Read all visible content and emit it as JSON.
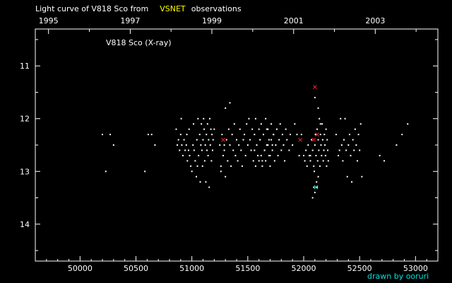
{
  "title": {
    "prefix": "Light curve of V818 Sco from",
    "source": "VSNET",
    "suffix": "observations"
  },
  "credit": "drawn by ooruri",
  "colors": {
    "background": "#000000",
    "foreground": "#ffffff",
    "accent": "#ffff00",
    "credit": "#00e0e0",
    "marker_red": "#ff2020",
    "marker_cyan": "#40e0e0"
  },
  "chart_data": {
    "type": "scatter",
    "annotation": "V818 Sco (X-ray)",
    "xlim": [
      49600,
      53200
    ],
    "ylim": [
      14.7,
      10.3
    ],
    "y_inverted": true,
    "grid": false,
    "x_ticks": [
      50000,
      50500,
      51000,
      51500,
      52000,
      52500,
      53000
    ],
    "x_tick_labels": [
      "50000",
      "50500",
      "51000",
      "51500",
      "52000",
      "52500",
      "53000"
    ],
    "y_ticks": [
      11,
      12,
      13,
      14
    ],
    "y_tick_labels": [
      "11",
      "12",
      "13",
      "14"
    ],
    "top_axis": {
      "ticks": [
        49718,
        50449,
        51179,
        51910,
        52640
      ],
      "labels": [
        "1995",
        "1997",
        "1999",
        "2001",
        "2003"
      ]
    },
    "series": [
      {
        "color": "#ffffff",
        "points": [
          [
            50200,
            12.3
          ],
          [
            50230,
            13.0
          ],
          [
            50270,
            12.3
          ],
          [
            50300,
            12.5
          ],
          [
            50580,
            13.0
          ],
          [
            50610,
            12.3
          ],
          [
            50640,
            12.3
          ],
          [
            50670,
            12.5
          ],
          [
            50860,
            12.2
          ],
          [
            50870,
            12.5
          ],
          [
            50880,
            12.4
          ],
          [
            50890,
            12.6
          ],
          [
            50900,
            12.3
          ],
          [
            50905,
            12.0
          ],
          [
            50910,
            12.5
          ],
          [
            50920,
            12.7
          ],
          [
            50930,
            12.4
          ],
          [
            50940,
            12.6
          ],
          [
            50950,
            12.5
          ],
          [
            50955,
            12.3
          ],
          [
            50960,
            12.8
          ],
          [
            50970,
            12.6
          ],
          [
            50975,
            12.2
          ],
          [
            50980,
            12.7
          ],
          [
            50990,
            12.9
          ],
          [
            51000,
            13.0
          ],
          [
            51010,
            12.5
          ],
          [
            51015,
            12.1
          ],
          [
            51020,
            12.6
          ],
          [
            51030,
            12.8
          ],
          [
            51040,
            13.1
          ],
          [
            51045,
            12.4
          ],
          [
            51050,
            12.9
          ],
          [
            51055,
            12.0
          ],
          [
            51060,
            12.7
          ],
          [
            51070,
            12.3
          ],
          [
            51075,
            13.2
          ],
          [
            51080,
            12.5
          ],
          [
            51085,
            12.1
          ],
          [
            51090,
            12.6
          ],
          [
            51095,
            12.9
          ],
          [
            51100,
            12.4
          ],
          [
            51105,
            12.0
          ],
          [
            51110,
            12.2
          ],
          [
            51115,
            12.8
          ],
          [
            51120,
            12.5
          ],
          [
            51125,
            13.2
          ],
          [
            51130,
            12.3
          ],
          [
            51135,
            12.6
          ],
          [
            51140,
            12.1
          ],
          [
            51145,
            12.7
          ],
          [
            51150,
            12.4
          ],
          [
            51155,
            13.3
          ],
          [
            51160,
            12.0
          ],
          [
            51165,
            12.5
          ],
          [
            51170,
            12.2
          ],
          [
            51175,
            12.8
          ],
          [
            51180,
            12.3
          ],
          [
            51185,
            12.6
          ],
          [
            51190,
            12.4
          ],
          [
            51200,
            12.2
          ],
          [
            51250,
            12.5
          ],
          [
            51260,
            12.9
          ],
          [
            51270,
            12.3
          ],
          [
            51280,
            12.7
          ],
          [
            51290,
            12.6
          ],
          [
            51300,
            13.1
          ],
          [
            51310,
            12.4
          ],
          [
            51320,
            12.8
          ],
          [
            51330,
            12.2
          ],
          [
            51340,
            12.5
          ],
          [
            51350,
            12.9
          ],
          [
            51360,
            12.3
          ],
          [
            51370,
            12.6
          ],
          [
            51380,
            12.1
          ],
          [
            51390,
            12.7
          ],
          [
            51400,
            12.4
          ],
          [
            51410,
            12.8
          ],
          [
            51420,
            12.5
          ],
          [
            51430,
            12.2
          ],
          [
            51440,
            12.6
          ],
          [
            51450,
            12.9
          ],
          [
            51460,
            12.4
          ],
          [
            51470,
            12.3
          ],
          [
            51480,
            12.7
          ],
          [
            51490,
            12.1
          ],
          [
            51500,
            12.5
          ],
          [
            51510,
            12.0
          ],
          [
            51520,
            12.4
          ],
          [
            51530,
            12.6
          ],
          [
            51540,
            12.2
          ],
          [
            51550,
            12.8
          ],
          [
            51560,
            12.3
          ],
          [
            51570,
            12.0
          ],
          [
            51580,
            12.5
          ],
          [
            51590,
            12.7
          ],
          [
            51600,
            12.2
          ],
          [
            51610,
            12.4
          ],
          [
            51620,
            12.1
          ],
          [
            51630,
            12.8
          ],
          [
            51640,
            12.3
          ],
          [
            51650,
            12.6
          ],
          [
            51660,
            12.0
          ],
          [
            51670,
            12.5
          ],
          [
            51680,
            12.2
          ],
          [
            51690,
            12.4
          ],
          [
            51700,
            12.7
          ],
          [
            51710,
            12.1
          ],
          [
            51720,
            12.5
          ],
          [
            51730,
            12.3
          ],
          [
            51300,
            11.8
          ],
          [
            51340,
            11.7
          ],
          [
            51260,
            13.0
          ],
          [
            51290,
            12.5
          ],
          [
            51560,
            12.6
          ],
          [
            51570,
            12.9
          ],
          [
            51580,
            12.5
          ],
          [
            51600,
            12.8
          ],
          [
            51610,
            12.4
          ],
          [
            51620,
            12.7
          ],
          [
            51630,
            12.9
          ],
          [
            51640,
            12.3
          ],
          [
            51650,
            12.6
          ],
          [
            51660,
            12.8
          ],
          [
            51670,
            12.2
          ],
          [
            51680,
            12.5
          ],
          [
            51690,
            12.7
          ],
          [
            51700,
            12.9
          ],
          [
            51710,
            12.4
          ],
          [
            51720,
            12.6
          ],
          [
            51730,
            12.3
          ],
          [
            51740,
            12.8
          ],
          [
            51750,
            12.5
          ],
          [
            51760,
            12.2
          ],
          [
            51770,
            12.7
          ],
          [
            51780,
            12.4
          ],
          [
            51790,
            12.1
          ],
          [
            51800,
            12.6
          ],
          [
            51810,
            12.3
          ],
          [
            51820,
            12.5
          ],
          [
            51830,
            12.8
          ],
          [
            51840,
            12.2
          ],
          [
            51850,
            12.4
          ],
          [
            51870,
            12.6
          ],
          [
            51880,
            12.3
          ],
          [
            51900,
            12.5
          ],
          [
            51920,
            12.1
          ],
          [
            51940,
            12.3
          ],
          [
            51960,
            12.7
          ],
          [
            51980,
            12.3
          ],
          [
            52000,
            12.7
          ],
          [
            52010,
            12.8
          ],
          [
            52020,
            12.6
          ],
          [
            52030,
            12.9
          ],
          [
            52040,
            12.5
          ],
          [
            52050,
            12.7
          ],
          [
            52060,
            12.8
          ],
          [
            52070,
            12.4
          ],
          [
            52080,
            12.6
          ],
          [
            52090,
            12.9
          ],
          [
            52095,
            13.0
          ],
          [
            52100,
            12.5
          ],
          [
            52105,
            12.3
          ],
          [
            52110,
            12.7
          ],
          [
            52115,
            13.2
          ],
          [
            52120,
            12.2
          ],
          [
            52125,
            12.8
          ],
          [
            52130,
            12.4
          ],
          [
            52135,
            12.6
          ],
          [
            52140,
            12.0
          ],
          [
            52145,
            12.9
          ],
          [
            52150,
            12.3
          ],
          [
            52155,
            12.5
          ],
          [
            52160,
            12.7
          ],
          [
            52165,
            12.1
          ],
          [
            52170,
            12.4
          ],
          [
            52175,
            12.8
          ],
          [
            52180,
            12.6
          ],
          [
            52185,
            12.3
          ],
          [
            52190,
            12.5
          ],
          [
            52195,
            12.7
          ],
          [
            52200,
            12.2
          ],
          [
            52205,
            12.9
          ],
          [
            52210,
            12.4
          ],
          [
            52215,
            12.6
          ],
          [
            52220,
            12.8
          ],
          [
            52100,
            11.6
          ],
          [
            52130,
            11.8
          ],
          [
            52150,
            12.1
          ],
          [
            52090,
            13.3
          ],
          [
            52080,
            13.5
          ],
          [
            52100,
            13.4
          ],
          [
            52120,
            13.3
          ],
          [
            52130,
            13.1
          ],
          [
            52060,
            12.7
          ],
          [
            52290,
            12.3
          ],
          [
            52310,
            12.7
          ],
          [
            52320,
            12.6
          ],
          [
            52330,
            12.0
          ],
          [
            52340,
            12.5
          ],
          [
            52350,
            12.8
          ],
          [
            52360,
            12.4
          ],
          [
            52370,
            12.0
          ],
          [
            52380,
            12.6
          ],
          [
            52390,
            13.1
          ],
          [
            52400,
            12.5
          ],
          [
            52410,
            12.3
          ],
          [
            52420,
            12.7
          ],
          [
            52430,
            13.2
          ],
          [
            52440,
            12.4
          ],
          [
            52450,
            12.6
          ],
          [
            52460,
            12.2
          ],
          [
            52470,
            12.5
          ],
          [
            52480,
            12.8
          ],
          [
            52490,
            12.3
          ],
          [
            52500,
            12.6
          ],
          [
            52510,
            12.1
          ],
          [
            52520,
            13.1
          ],
          [
            52680,
            12.7
          ],
          [
            52720,
            12.8
          ],
          [
            52830,
            12.5
          ],
          [
            52880,
            12.3
          ],
          [
            52930,
            12.1
          ]
        ]
      },
      {
        "color": "#ff2020",
        "points": [
          [
            51280,
            12.4
          ],
          [
            52090,
            12.4
          ],
          [
            52100,
            11.4
          ],
          [
            52120,
            12.3
          ],
          [
            51970,
            12.4
          ]
        ]
      },
      {
        "color": "#40e0e0",
        "points": [
          [
            52110,
            13.3
          ]
        ]
      }
    ]
  }
}
